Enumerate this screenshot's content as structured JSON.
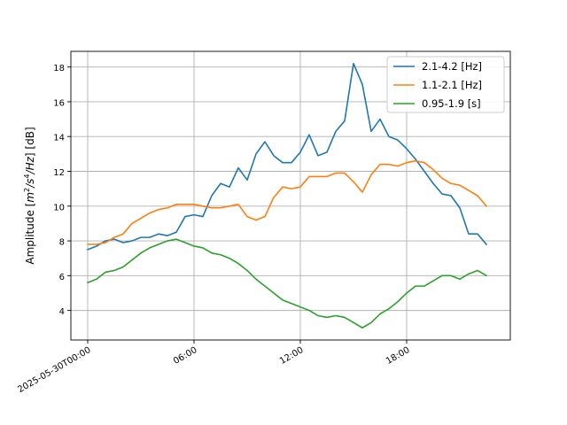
{
  "chart_data": {
    "type": "line",
    "title": "",
    "xlabel": "",
    "ylabel": "Amplitude [m²/s⁴/Hz] [dB]",
    "ylabel_parts": {
      "prefix": "Amplitude [",
      "m": "m",
      "sq": "2",
      "slash1": "/",
      "s": "s",
      "four": "4",
      "slash2": "/",
      "hz": "Hz",
      "close": "] [dB]"
    },
    "x_unit": "hours after 2025-05-30T00:00",
    "xlim": [
      -0.95,
      23.85
    ],
    "ylim": [
      2.3,
      18.9
    ],
    "x_ticks": [
      {
        "value": 0,
        "label": "2025-05-30T00:00"
      },
      {
        "value": 6,
        "label": "06:00"
      },
      {
        "value": 12,
        "label": "12:00"
      },
      {
        "value": 18,
        "label": "18:00"
      }
    ],
    "y_ticks": [
      {
        "value": 4,
        "label": "4"
      },
      {
        "value": 6,
        "label": "6"
      },
      {
        "value": 8,
        "label": "8"
      },
      {
        "value": 10,
        "label": "10"
      },
      {
        "value": 12,
        "label": "12"
      },
      {
        "value": 14,
        "label": "14"
      },
      {
        "value": 16,
        "label": "16"
      },
      {
        "value": 18,
        "label": "18"
      }
    ],
    "grid": true,
    "legend_position": "top-right",
    "x": [
      0,
      0.5,
      1,
      1.5,
      2,
      2.5,
      3,
      3.5,
      4,
      4.5,
      5,
      5.5,
      6,
      6.5,
      7,
      7.5,
      8,
      8.5,
      9,
      9.5,
      10,
      10.5,
      11,
      11.5,
      12,
      12.5,
      13,
      13.5,
      14,
      14.5,
      15,
      15.5,
      16,
      16.5,
      17,
      17.5,
      18,
      18.5,
      19,
      19.5,
      20,
      20.5,
      21,
      21.5,
      22,
      22.5
    ],
    "series": [
      {
        "name": "2.1-4.2 [Hz]",
        "color": "#1f77b4",
        "values": [
          7.5,
          7.7,
          8.0,
          8.1,
          7.9,
          8.0,
          8.2,
          8.2,
          8.4,
          8.3,
          8.5,
          9.4,
          9.5,
          9.4,
          10.6,
          11.3,
          11.1,
          12.2,
          11.5,
          13.0,
          13.7,
          12.9,
          12.5,
          12.5,
          13.1,
          14.1,
          12.9,
          13.1,
          14.3,
          14.9,
          18.2,
          17.0,
          14.3,
          15.0,
          14.0,
          13.8,
          13.3,
          12.7,
          12.0,
          11.3,
          10.7,
          10.6,
          9.9,
          8.4,
          8.4,
          7.8
        ]
      },
      {
        "name": "1.1-2.1 [Hz]",
        "color": "#ff7f0e",
        "values": [
          7.8,
          7.8,
          7.9,
          8.2,
          8.4,
          9.0,
          9.3,
          9.6,
          9.8,
          9.9,
          10.1,
          10.1,
          10.1,
          10.0,
          9.9,
          9.9,
          10.0,
          10.1,
          9.4,
          9.2,
          9.4,
          10.5,
          11.1,
          11.0,
          11.1,
          11.7,
          11.7,
          11.7,
          11.9,
          11.9,
          11.4,
          10.8,
          11.8,
          12.4,
          12.4,
          12.3,
          12.5,
          12.6,
          12.5,
          12.1,
          11.6,
          11.3,
          11.2,
          10.9,
          10.6,
          10.0
        ]
      },
      {
        "name": "0.95-1.9 [s]",
        "color": "#2ca02c",
        "values": [
          5.6,
          5.8,
          6.2,
          6.3,
          6.5,
          6.9,
          7.3,
          7.6,
          7.8,
          8.0,
          8.1,
          7.9,
          7.7,
          7.6,
          7.3,
          7.2,
          7.0,
          6.7,
          6.3,
          5.8,
          5.4,
          5.0,
          4.6,
          4.4,
          4.2,
          4.0,
          3.7,
          3.6,
          3.7,
          3.6,
          3.3,
          3.0,
          3.3,
          3.8,
          4.1,
          4.5,
          5.0,
          5.4,
          5.4,
          5.7,
          6.0,
          6.0,
          5.8,
          6.1,
          6.3,
          6.0
        ]
      }
    ]
  }
}
